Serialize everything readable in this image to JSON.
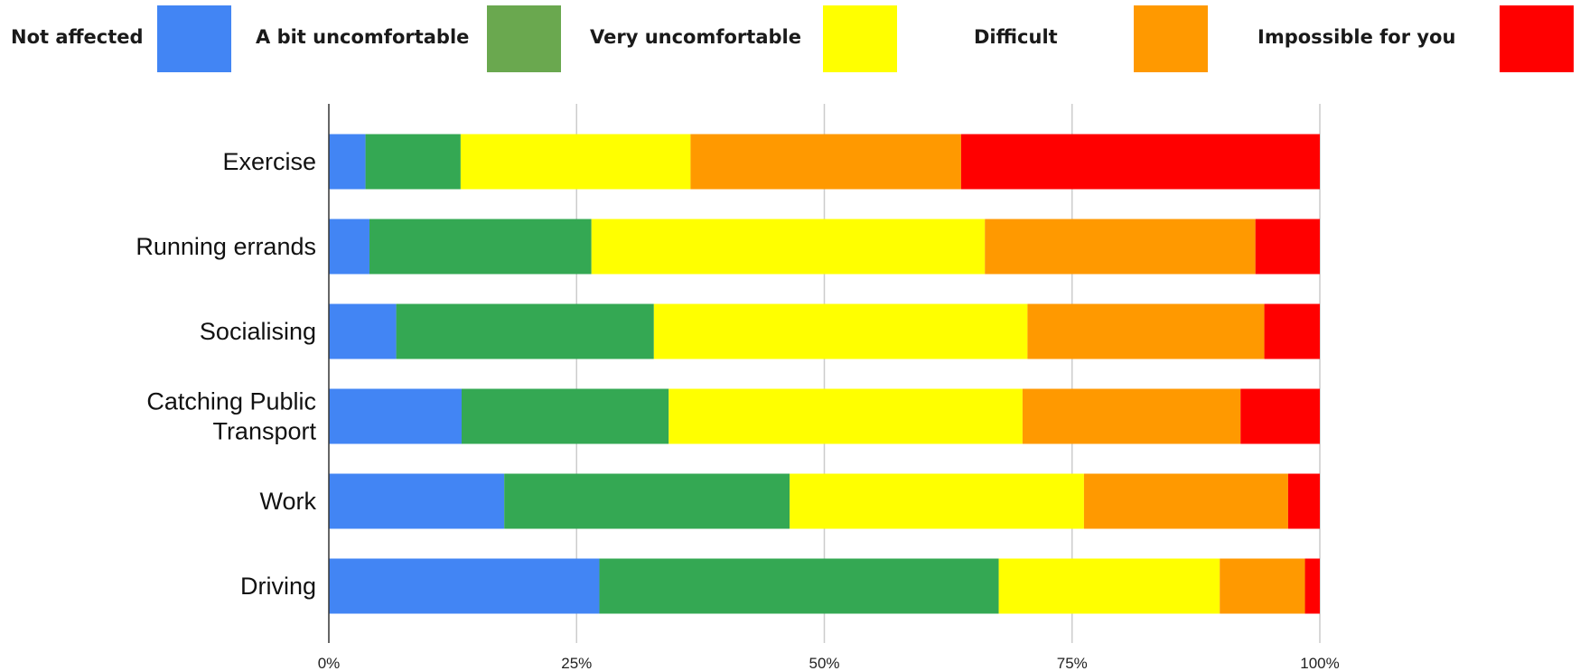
{
  "chart_data": {
    "type": "bar",
    "orientation": "horizontal",
    "stacked": "percent",
    "categories": [
      "Exercise",
      "Running errands",
      "Socialising",
      "Catching Public Transport",
      "Work",
      "Driving"
    ],
    "category_label_lines": [
      [
        "Exercise"
      ],
      [
        "Running errands"
      ],
      [
        "Socialising"
      ],
      [
        "Catching Public",
        "Transport"
      ],
      [
        "Work"
      ],
      [
        "Driving"
      ]
    ],
    "series": [
      {
        "name": "Not affected",
        "color": "#4285f4",
        "values": [
          3.7,
          4.1,
          6.8,
          13.4,
          17.7,
          27.3
        ]
      },
      {
        "name": "A bit uncomfortable",
        "color": "#34a853",
        "values": [
          9.6,
          22.4,
          26.0,
          20.9,
          28.8,
          40.3
        ]
      },
      {
        "name": "Very uncomfortable",
        "color": "#ffff00",
        "values": [
          23.2,
          39.7,
          37.7,
          35.7,
          29.7,
          22.3
        ]
      },
      {
        "name": "Difficult",
        "color": "#ff9900",
        "values": [
          27.3,
          27.3,
          23.9,
          22.0,
          20.6,
          8.6
        ]
      },
      {
        "name": "Impossible for you",
        "color": "#ff0000",
        "values": [
          36.2,
          6.5,
          5.6,
          8.0,
          3.2,
          1.5
        ]
      }
    ],
    "legend": {
      "position": "top",
      "labels": [
        "Not affected",
        "A bit uncomfortable",
        "Very uncomfortable",
        "Difficult",
        "Impossible for you"
      ],
      "swatch_colors": [
        "#4285f4",
        "#6aa84f",
        "#ffff00",
        "#ff9900",
        "#ff0000"
      ]
    },
    "x_ticks": [
      "0%",
      "25%",
      "50%",
      "75%",
      "100%"
    ],
    "xlim": [
      0,
      100
    ],
    "grid": true,
    "title": "",
    "xlabel": "",
    "ylabel": ""
  }
}
